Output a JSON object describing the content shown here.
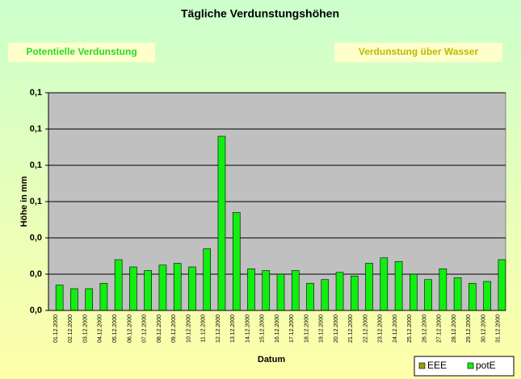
{
  "chart_data": {
    "type": "bar",
    "title": "Tägliche Verdunstungshöhen",
    "label_left": "Potentielle Verdunstung",
    "label_right": "Verdunstung über Wasser",
    "x_label": "Datum",
    "y_label": "Höhe in mm",
    "categories": [
      "01.12.2000",
      "02.12.2000",
      "03.12.2000",
      "04.12.2000",
      "05.12.2000",
      "06.12.2000",
      "07.12.2000",
      "08.12.2000",
      "09.12.2000",
      "10.12.2000",
      "11.12.2000",
      "12.12.2000",
      "13.12.2000",
      "14.12.2000",
      "15.12.2000",
      "16.12.2000",
      "17.12.2000",
      "18.12.2000",
      "19.12.2000",
      "20.12.2000",
      "21.12.2000",
      "22.12.2000",
      "23.12.2000",
      "24.12.2000",
      "25.12.2000",
      "26.12.2000",
      "27.12.2000",
      "28.12.2000",
      "29.12.2000",
      "30.12.2000",
      "31.12.2000"
    ],
    "series": [
      {
        "name": "EEE",
        "color": "#99a000",
        "values": [
          null,
          null,
          null,
          null,
          null,
          null,
          null,
          null,
          null,
          null,
          null,
          null,
          null,
          null,
          null,
          null,
          null,
          null,
          null,
          null,
          null,
          null,
          null,
          null,
          null,
          null,
          null,
          null,
          null,
          null,
          null
        ]
      },
      {
        "name": "potE",
        "color": "#11ee11",
        "values": [
          0.014,
          0.012,
          0.012,
          0.015,
          0.028,
          0.024,
          0.022,
          0.025,
          0.026,
          0.024,
          0.034,
          0.096,
          0.054,
          0.023,
          0.022,
          0.02,
          0.022,
          0.015,
          0.017,
          0.021,
          0.019,
          0.026,
          0.029,
          0.027,
          0.02,
          0.017,
          0.023,
          0.018,
          0.015,
          0.016,
          0.028
        ]
      }
    ],
    "ylim": [
      0,
      0.12
    ],
    "yticks": [
      {
        "value": 0,
        "label": "0,0"
      },
      {
        "value": 0.02,
        "label": "0,0"
      },
      {
        "value": 0.04,
        "label": "0,0"
      },
      {
        "value": 0.06,
        "label": "0,1"
      },
      {
        "value": 0.08,
        "label": "0,1"
      },
      {
        "value": 0.1,
        "label": "0,1"
      },
      {
        "value": 0.12,
        "label": "0,1"
      }
    ],
    "grid": true,
    "legend": "bottom-right"
  }
}
